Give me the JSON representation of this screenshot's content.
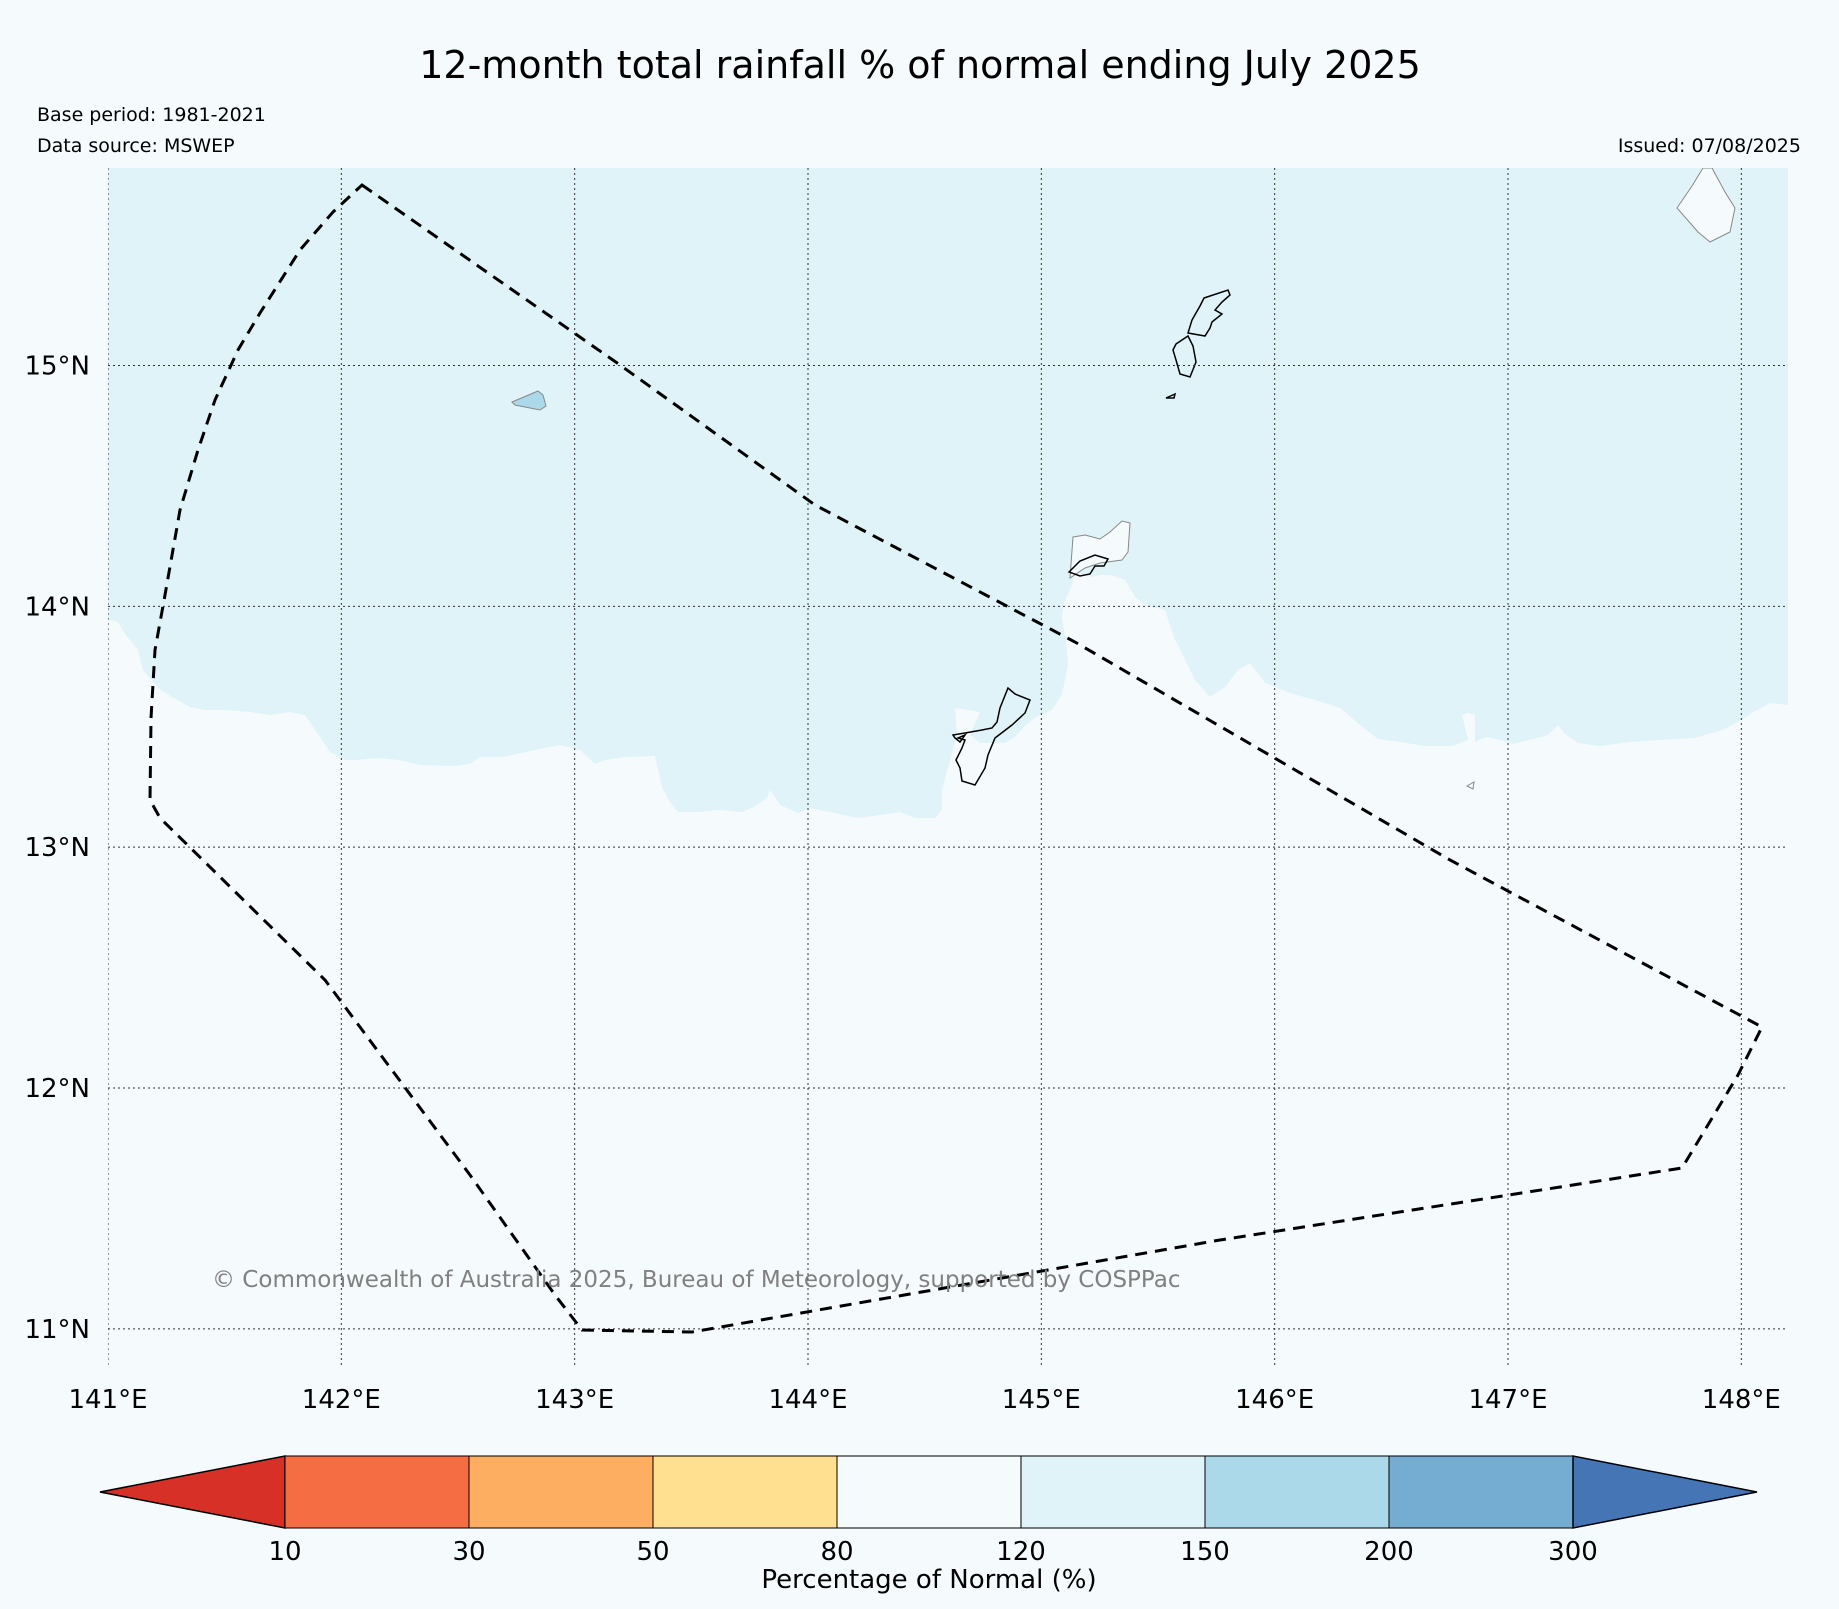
{
  "title": "12-month total rainfall % of normal ending July 2025",
  "base_period": "Base period: 1981-2021",
  "data_source": "Data source: MSWEP",
  "issued": "Issued: 07/08/2025",
  "copyright": "© Commonwealth of Australia 2025, Bureau of Meteorology, supported by COSPPac",
  "map": {
    "lon_range": [
      141,
      148.2
    ],
    "lat_range": [
      10.85,
      15.82
    ],
    "lon_ticks": [
      {
        "value": 141,
        "label": "141°E"
      },
      {
        "value": 142,
        "label": "142°E"
      },
      {
        "value": 143,
        "label": "143°E"
      },
      {
        "value": 144,
        "label": "144°E"
      },
      {
        "value": 145,
        "label": "145°E"
      },
      {
        "value": 146,
        "label": "146°E"
      },
      {
        "value": 147,
        "label": "147°E"
      },
      {
        "value": 148,
        "label": "148°E"
      }
    ],
    "lat_ticks": [
      {
        "value": 15,
        "label": "15°N"
      },
      {
        "value": 14,
        "label": "14°N"
      },
      {
        "value": 13,
        "label": "13°N"
      },
      {
        "value": 12,
        "label": "12°N"
      },
      {
        "value": 11,
        "label": "11°N"
      }
    ],
    "background_color": "#f5fafd",
    "wet_region_color": "#e0f3f8",
    "wetter_patch_color": "#abd9e9"
  },
  "colorbar": {
    "label": "Percentage of Normal (%)",
    "boundaries": [
      "10",
      "30",
      "50",
      "80",
      "120",
      "150",
      "200",
      "300"
    ],
    "colors": [
      "#d73027",
      "#f46d43",
      "#fdae61",
      "#fee090",
      "#f5fafd",
      "#e0f3f8",
      "#abd9e9",
      "#74add1",
      "#4575b4"
    ]
  }
}
